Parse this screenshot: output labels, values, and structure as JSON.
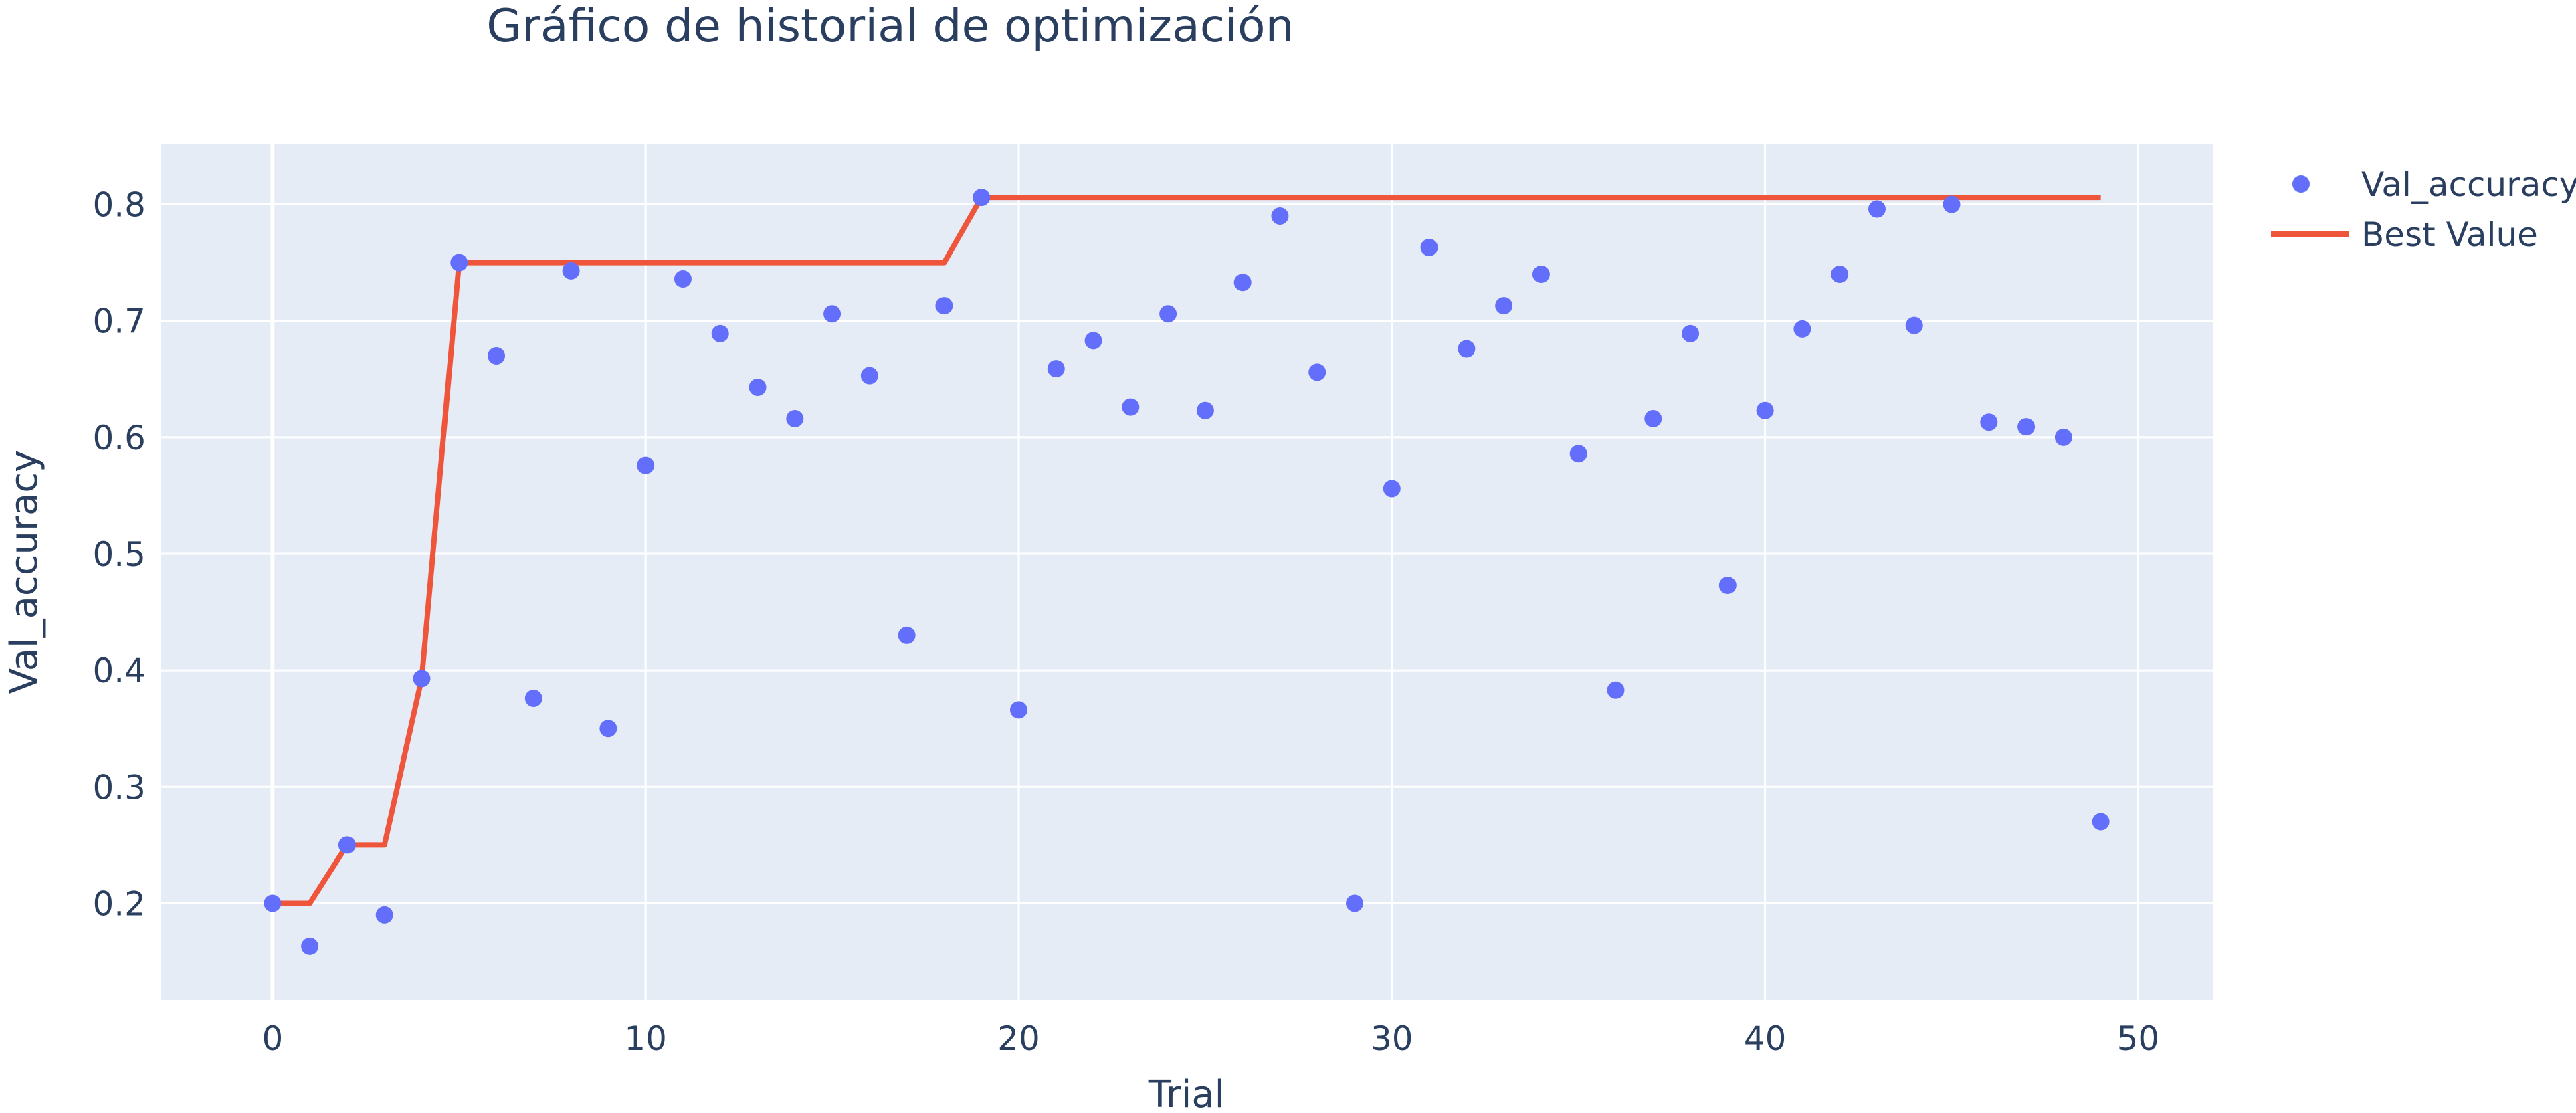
{
  "chart_data": {
    "type": "scatter",
    "title": "Gráfico de historial de optimización",
    "xlabel": "Trial",
    "ylabel": "Val_accuracy",
    "xlim": [
      -3,
      52
    ],
    "ylim": [
      0.117,
      0.852
    ],
    "xticks": [
      0,
      10,
      20,
      30,
      40,
      50
    ],
    "yticks": [
      0.2,
      0.3,
      0.4,
      0.5,
      0.6,
      0.7,
      0.8
    ],
    "grid": true,
    "legend_position": "top-right",
    "colors": {
      "points": "#636efa",
      "best": "#ef553b",
      "plot_bg": "#e5ecf6",
      "grid": "#ffffff",
      "text": "#2a3f5f"
    },
    "series": [
      {
        "name": "Val_accuracy",
        "kind": "markers",
        "x": [
          0,
          1,
          2,
          3,
          4,
          5,
          6,
          7,
          8,
          9,
          10,
          11,
          12,
          13,
          14,
          15,
          16,
          17,
          18,
          19,
          20,
          21,
          22,
          23,
          24,
          25,
          26,
          27,
          28,
          29,
          30,
          31,
          32,
          33,
          34,
          35,
          36,
          37,
          38,
          39,
          40,
          41,
          42,
          43,
          44,
          45,
          46,
          47,
          48,
          49
        ],
        "y": [
          0.2,
          0.163,
          0.25,
          0.19,
          0.393,
          0.75,
          0.67,
          0.376,
          0.743,
          0.35,
          0.576,
          0.736,
          0.689,
          0.643,
          0.616,
          0.706,
          0.653,
          0.43,
          0.713,
          0.806,
          0.366,
          0.659,
          0.683,
          0.626,
          0.706,
          0.623,
          0.733,
          0.79,
          0.656,
          0.2,
          0.556,
          0.763,
          0.676,
          0.713,
          0.74,
          0.586,
          0.383,
          0.616,
          0.689,
          0.473,
          0.623,
          0.693,
          0.74,
          0.796,
          0.696,
          0.8,
          0.613,
          0.609,
          0.6,
          0.27
        ]
      },
      {
        "name": "Best Value",
        "kind": "line",
        "x": [
          0,
          1,
          2,
          3,
          4,
          5,
          6,
          7,
          8,
          9,
          10,
          11,
          12,
          13,
          14,
          15,
          16,
          17,
          18,
          19,
          20,
          21,
          22,
          23,
          24,
          25,
          26,
          27,
          28,
          29,
          30,
          31,
          32,
          33,
          34,
          35,
          36,
          37,
          38,
          39,
          40,
          41,
          42,
          43,
          44,
          45,
          46,
          47,
          48,
          49
        ],
        "y": [
          0.2,
          0.2,
          0.25,
          0.25,
          0.393,
          0.75,
          0.75,
          0.75,
          0.75,
          0.75,
          0.75,
          0.75,
          0.75,
          0.75,
          0.75,
          0.75,
          0.75,
          0.75,
          0.75,
          0.806,
          0.806,
          0.806,
          0.806,
          0.806,
          0.806,
          0.806,
          0.806,
          0.806,
          0.806,
          0.806,
          0.806,
          0.806,
          0.806,
          0.806,
          0.806,
          0.806,
          0.806,
          0.806,
          0.806,
          0.806,
          0.806,
          0.806,
          0.806,
          0.806,
          0.806,
          0.806,
          0.806,
          0.806,
          0.806,
          0.806
        ]
      }
    ]
  }
}
